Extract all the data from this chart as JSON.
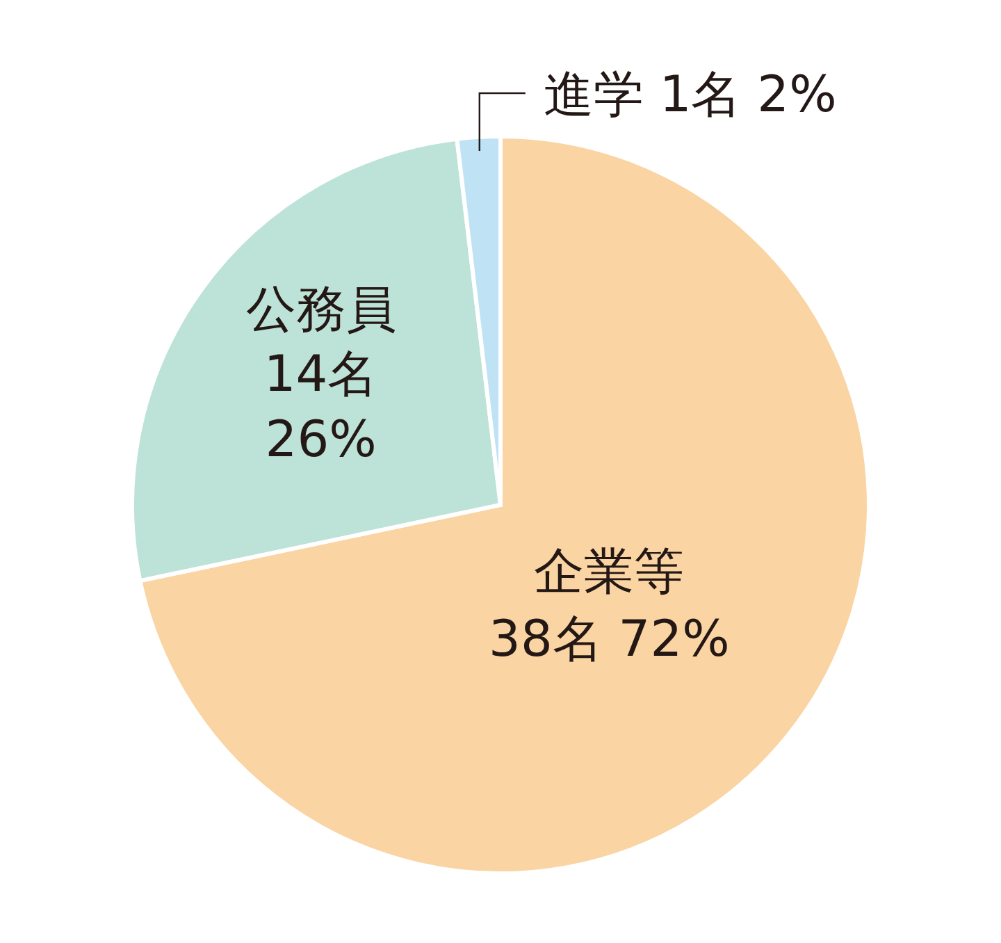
{
  "chart_data": {
    "type": "pie",
    "categories": [
      "企業等",
      "公務員",
      "進学"
    ],
    "values": [
      38,
      14,
      1
    ],
    "value_labels": [
      "38名 72%",
      "14名 26%",
      "1名 2%"
    ],
    "colors": [
      "#fad4a2",
      "#bde2d7",
      "#bfe3f4"
    ]
  }
}
